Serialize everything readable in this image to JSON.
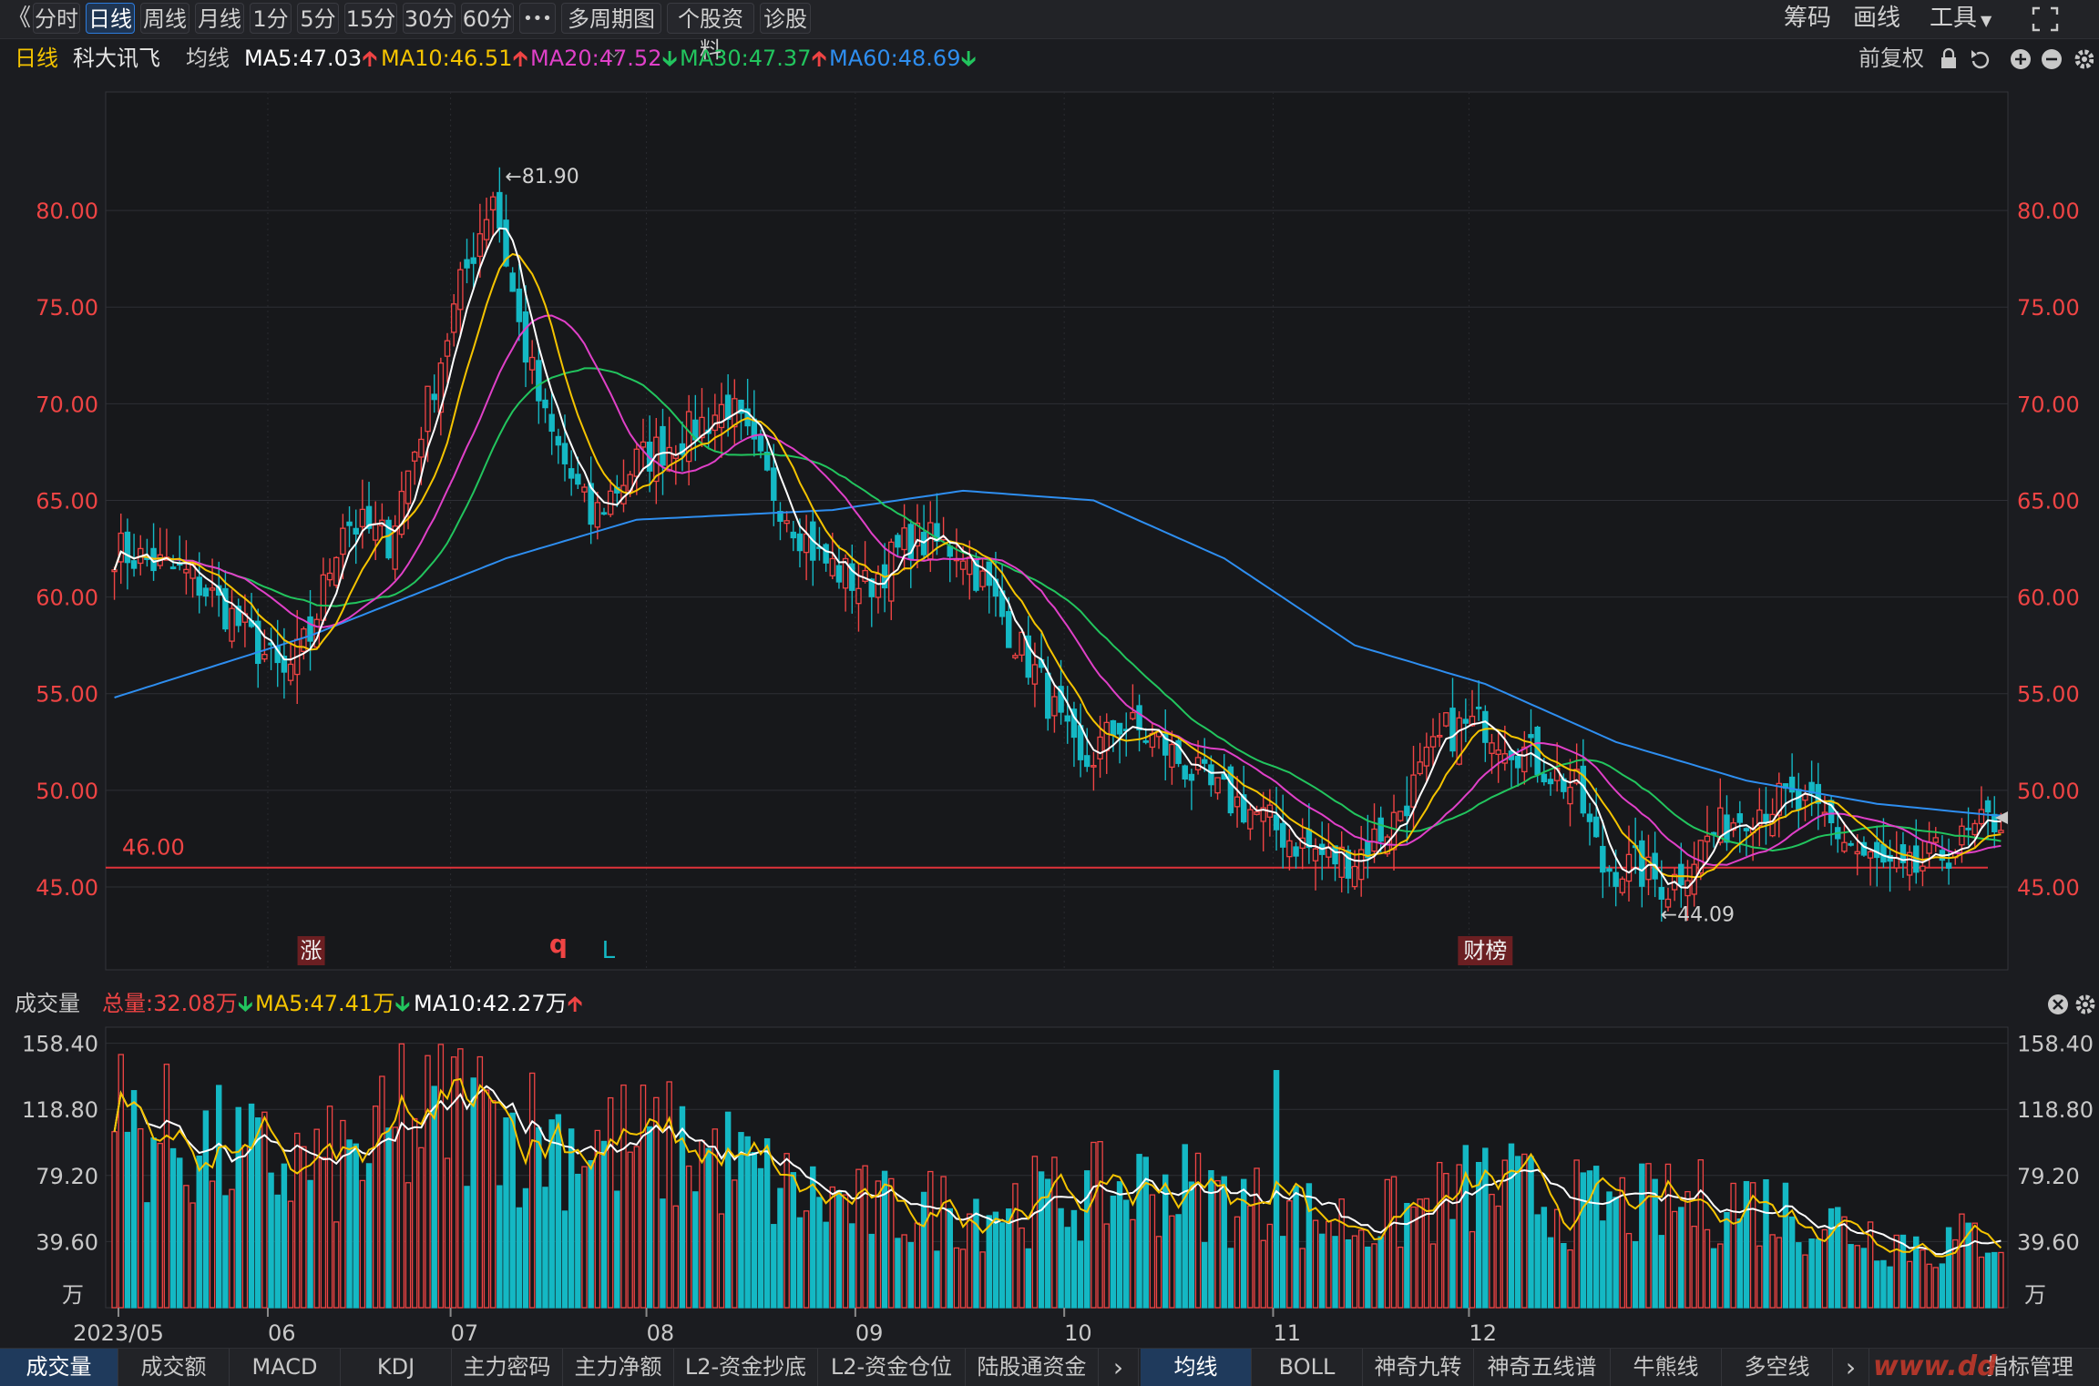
{
  "toolbar": {
    "back_glyph": "《",
    "periods": [
      "分时",
      "日线",
      "周线",
      "月线",
      "1分",
      "5分",
      "15分",
      "30分",
      "60分",
      "•••"
    ],
    "active_period": "日线",
    "multi_period": "多周期图",
    "profile": "个股资料",
    "diagnose": "诊股",
    "right": [
      "筹码",
      "画线",
      "工具"
    ]
  },
  "info": {
    "period": "日线",
    "stock_name": "科大讯飞",
    "ma_label": "均线",
    "ma5": "MA5:47.03",
    "ma10": "MA10:46.51",
    "ma20": "MA20:47.52",
    "ma30": "MA30:47.37",
    "ma60": "MA60:48.69",
    "adjust": "前复权",
    "colors": {
      "ma5": "#ffffff",
      "ma10": "#f5c400",
      "ma20": "#e040c8",
      "ma30": "#22c55e",
      "ma60": "#2e8ef0",
      "up": "#ef4444",
      "down": "#14b8c4"
    }
  },
  "chart_data": [
    {
      "type": "candlestick",
      "title": "",
      "yaxis_ticks": [
        "80.00",
        "75.00",
        "70.00",
        "65.00",
        "60.00",
        "55.00",
        "50.00",
        "45.00"
      ],
      "ylim": [
        42.5,
        85.0
      ],
      "x_ticks": [
        "2023/05",
        "06",
        "07",
        "08",
        "09",
        "10",
        "11",
        "12"
      ],
      "high_label": "81.90",
      "low_label": "44.09",
      "hline": {
        "value": 46.0,
        "label": "46.00"
      },
      "markers": [
        {
          "label": "涨",
          "category": "06"
        },
        {
          "label": "q",
          "category": "07"
        },
        {
          "label": "L",
          "category": "07"
        },
        {
          "label": "财榜",
          "category": "10"
        }
      ],
      "close_anchors": [
        [
          0,
          62.5
        ],
        [
          12,
          61.0
        ],
        [
          18,
          59.0
        ],
        [
          26,
          55.8
        ],
        [
          30,
          58.0
        ],
        [
          35,
          64.0
        ],
        [
          42,
          63.0
        ],
        [
          48,
          70.0
        ],
        [
          53,
          76.0
        ],
        [
          58,
          81.0
        ],
        [
          62,
          74.0
        ],
        [
          66,
          69.0
        ],
        [
          73,
          64.0
        ],
        [
          80,
          67.0
        ],
        [
          88,
          68.5
        ],
        [
          94,
          70.0
        ],
        [
          100,
          66.0
        ],
        [
          108,
          62.0
        ],
        [
          115,
          60.5
        ],
        [
          122,
          63.0
        ],
        [
          130,
          62.5
        ],
        [
          136,
          59.0
        ],
        [
          142,
          55.5
        ],
        [
          148,
          51.0
        ],
        [
          154,
          53.5
        ],
        [
          160,
          52.5
        ],
        [
          168,
          50.0
        ],
        [
          174,
          49.0
        ],
        [
          180,
          47.5
        ],
        [
          186,
          46.5
        ],
        [
          190,
          46.5
        ],
        [
          196,
          48.5
        ],
        [
          204,
          53.0
        ],
        [
          210,
          53.5
        ],
        [
          218,
          51.5
        ],
        [
          224,
          50.0
        ],
        [
          228,
          46.0
        ],
        [
          233,
          46.0
        ],
        [
          238,
          45.0
        ],
        [
          244,
          47.5
        ],
        [
          250,
          49.0
        ],
        [
          256,
          49.5
        ],
        [
          262,
          48.5
        ],
        [
          268,
          46.5
        ],
        [
          274,
          45.5
        ],
        [
          279,
          46.5
        ],
        [
          284,
          47.5
        ],
        [
          288,
          48.5
        ]
      ],
      "ma60_anchors": [
        [
          0,
          54.8
        ],
        [
          30,
          58.0
        ],
        [
          60,
          62.0
        ],
        [
          80,
          64.0
        ],
        [
          110,
          64.5
        ],
        [
          130,
          65.5
        ],
        [
          150,
          65.0
        ],
        [
          170,
          62.0
        ],
        [
          190,
          57.5
        ],
        [
          210,
          55.5
        ],
        [
          230,
          52.5
        ],
        [
          250,
          50.5
        ],
        [
          270,
          49.3
        ],
        [
          288,
          48.7
        ]
      ],
      "last_values": {
        "ma5": 47.03,
        "ma10": 46.51,
        "ma20": 47.52,
        "ma30": 47.37,
        "ma60": 48.69
      }
    },
    {
      "type": "bar",
      "title": "",
      "label": "成交量",
      "total": "总量:32.08万",
      "ma5": "MA5:47.41万",
      "ma10": "MA10:42.27万",
      "yaxis_ticks": [
        "158.40",
        "118.80",
        "79.20",
        "39.60"
      ],
      "unit": "万",
      "ylim": [
        0,
        168.0
      ],
      "vol_anchors": [
        [
          0,
          112
        ],
        [
          20,
          88
        ],
        [
          34,
          84
        ],
        [
          46,
          105
        ],
        [
          52,
          122
        ],
        [
          60,
          108
        ],
        [
          76,
          98
        ],
        [
          90,
          94
        ],
        [
          104,
          68
        ],
        [
          118,
          58
        ],
        [
          132,
          60
        ],
        [
          146,
          66
        ],
        [
          160,
          74
        ],
        [
          176,
          60
        ],
        [
          190,
          50
        ],
        [
          200,
          58
        ],
        [
          210,
          74
        ],
        [
          222,
          62
        ],
        [
          236,
          60
        ],
        [
          250,
          64
        ],
        [
          266,
          48
        ],
        [
          278,
          36
        ],
        [
          288,
          45
        ]
      ]
    }
  ],
  "vol_panel": {
    "close_icon": "close-icon",
    "gear_icon": "gear-icon"
  },
  "bottom_left": [
    "成交量",
    "成交额",
    "MACD",
    "KDJ",
    "主力密码",
    "主力净额",
    "L2-资金抄底",
    "L2-资金仓位",
    "陆股通资金"
  ],
  "bottom_right": [
    "均线",
    "BOLL",
    "神奇九转",
    "神奇五线谱",
    "牛熊线",
    "多空线",
    "指标管理"
  ],
  "bottom_active_left": "成交量",
  "bottom_active_right": "均线",
  "watermark": "www.dd"
}
